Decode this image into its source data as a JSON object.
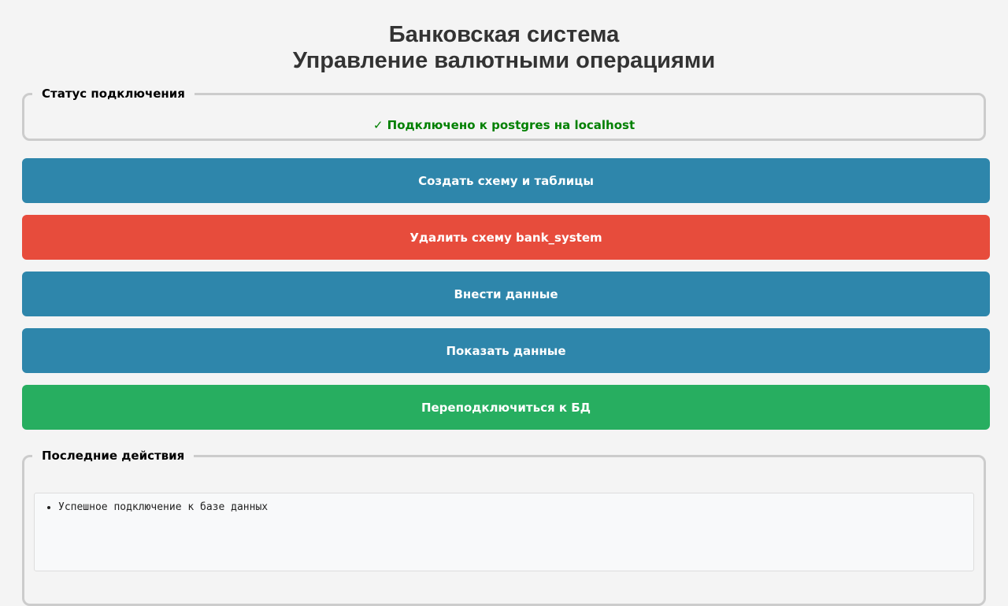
{
  "header": {
    "title_line1": "Банковская система",
    "title_line2": "Управление валютными операциями"
  },
  "status": {
    "legend": "Статус подключения",
    "text": "✓ Подключено к postgres на localhost",
    "color": "#008000"
  },
  "buttons": [
    {
      "label": "Создать схему и таблицы",
      "color": "#2e86ab"
    },
    {
      "label": "Удалить схему bank_system",
      "color": "#e74c3c"
    },
    {
      "label": "Внести данные",
      "color": "#2e86ab"
    },
    {
      "label": "Показать данные",
      "color": "#2e86ab"
    },
    {
      "label": "Переподключиться к БД",
      "color": "#27ae60"
    }
  ],
  "log": {
    "legend": "Последние действия",
    "items": [
      "Успешное подключение к базе данных"
    ]
  }
}
